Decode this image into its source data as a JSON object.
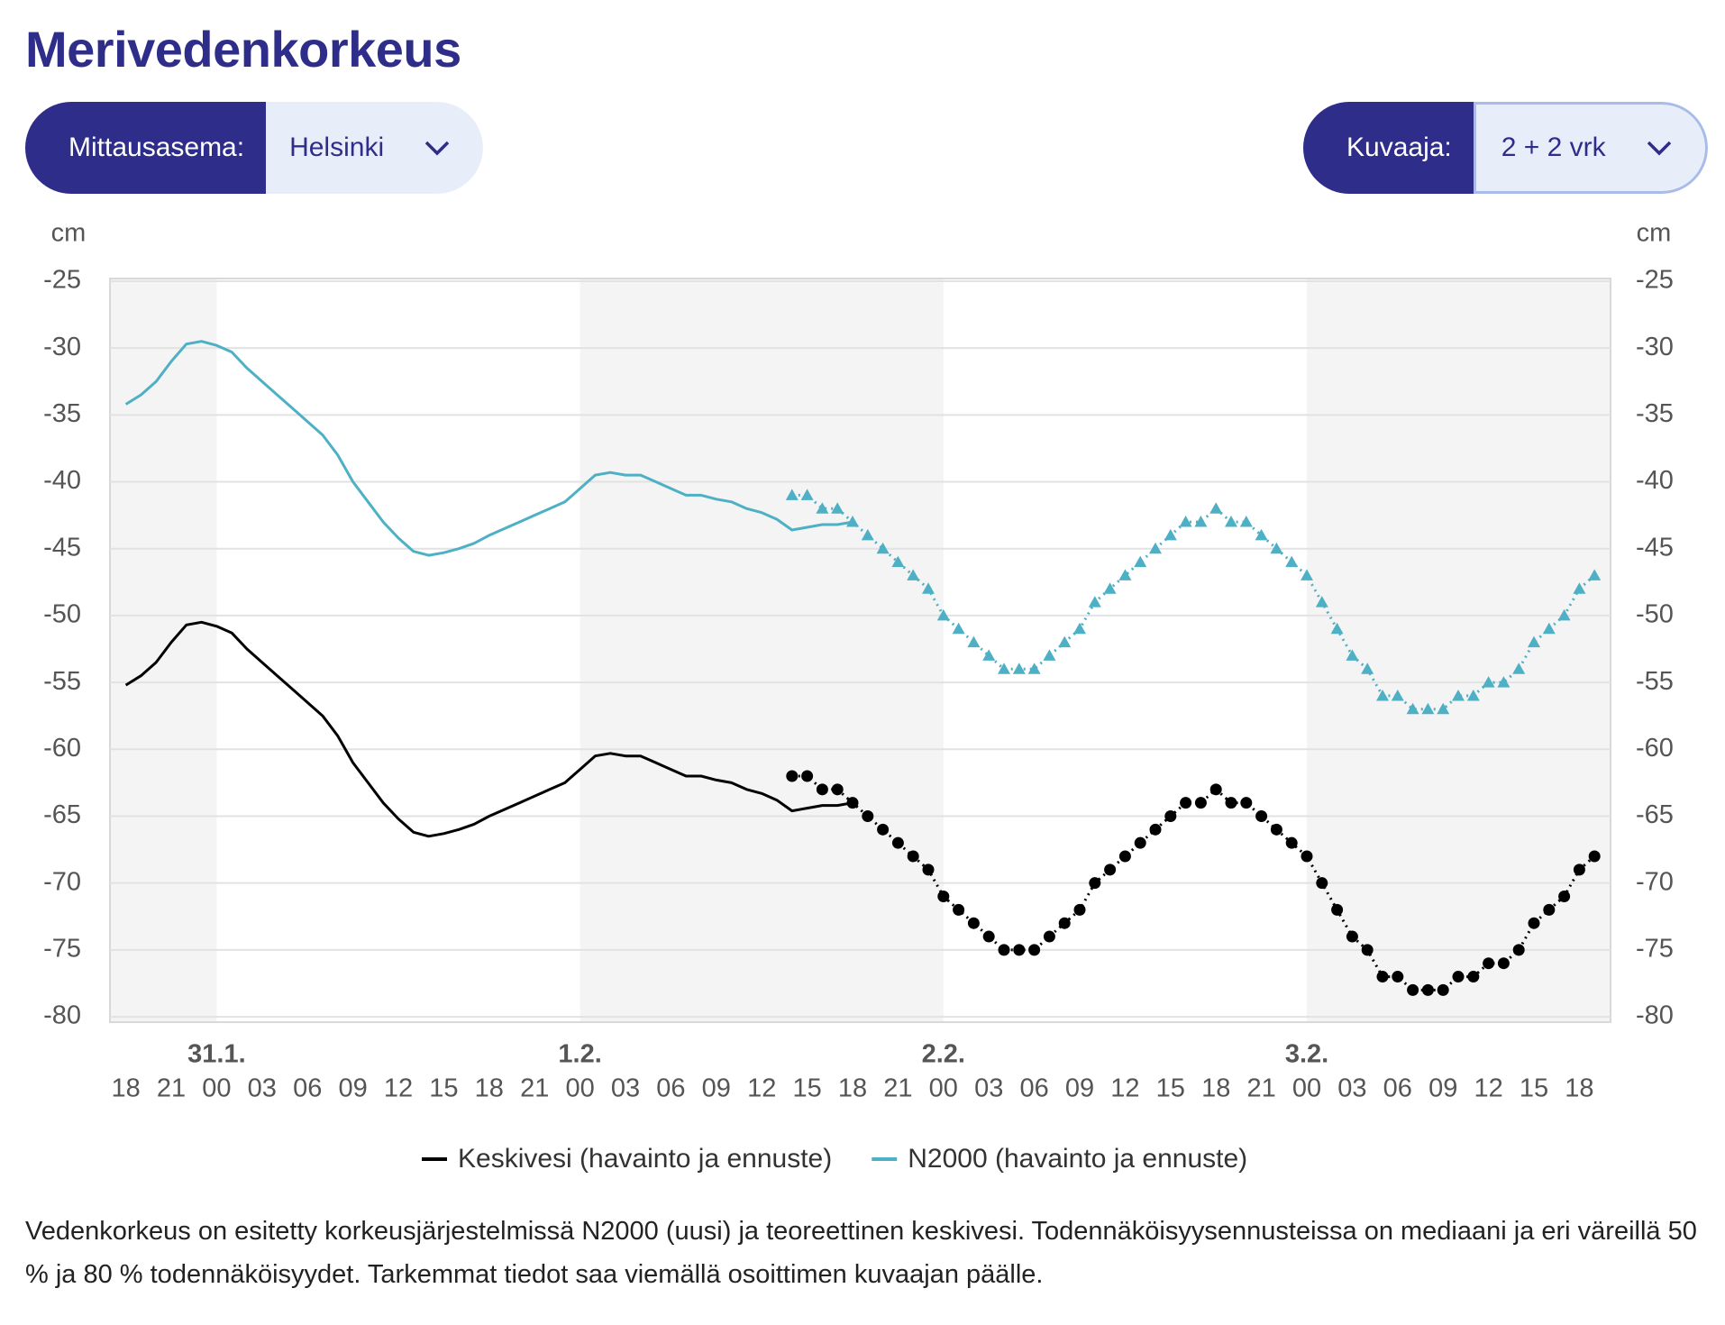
{
  "header": {
    "title": "Merivedenkorkeus",
    "controls": [
      {
        "label": "Mittausasema:",
        "value": "Helsinki"
      },
      {
        "label": "Kuvaaja:",
        "value": "2 + 2 vrk"
      }
    ]
  },
  "chart_data": {
    "type": "line",
    "y_label": "cm",
    "categories": [
      "18",
      null,
      null,
      "21",
      null,
      null,
      "00",
      null,
      null,
      "03",
      null,
      null,
      "06",
      null,
      null,
      "09",
      null,
      null,
      "12",
      null,
      null,
      "15",
      null,
      null,
      "18",
      null,
      null,
      "21",
      null,
      null,
      "00",
      null,
      null,
      "03",
      null,
      null,
      "06",
      null,
      null,
      "09",
      null,
      null,
      "12",
      null,
      null,
      "15",
      null,
      null,
      "18",
      null,
      null,
      "21",
      null,
      null,
      "00",
      null,
      null,
      "03",
      null,
      null,
      "06",
      null,
      null,
      "09",
      null,
      null,
      "12",
      null,
      null,
      "15",
      null,
      null,
      "18",
      null,
      null,
      "21",
      null,
      null,
      "00",
      null,
      null,
      "03",
      null,
      null,
      "06",
      null,
      null,
      "09",
      null,
      null,
      "12",
      null,
      null,
      "15",
      null,
      null,
      "18",
      null
    ],
    "dates": [
      null,
      null,
      null,
      null,
      null,
      null,
      "31.1.",
      null,
      null,
      null,
      null,
      null,
      null,
      null,
      null,
      null,
      null,
      null,
      null,
      null,
      null,
      null,
      null,
      null,
      null,
      null,
      null,
      null,
      null,
      null,
      "1.2.",
      null,
      null,
      null,
      null,
      null,
      null,
      null,
      null,
      null,
      null,
      null,
      null,
      null,
      null,
      null,
      null,
      null,
      null,
      null,
      null,
      null,
      null,
      null,
      "2.2.",
      null,
      null,
      null,
      null,
      null,
      null,
      null,
      null,
      null,
      null,
      null,
      null,
      null,
      null,
      null,
      null,
      null,
      null,
      null,
      null,
      null,
      null,
      null,
      "3.2.",
      null,
      null,
      null,
      null,
      null,
      null,
      null,
      null,
      null,
      null,
      null,
      null,
      null,
      null,
      null,
      null,
      null,
      null,
      null
    ],
    "ylim": [
      -80.4,
      -24.8
    ],
    "yticks": [
      -25,
      -30,
      -35,
      -40,
      -45,
      -50,
      -55,
      -60,
      -65,
      -70,
      -75,
      -80
    ],
    "grid": true,
    "series": [
      {
        "name": "Keskivesi (havainto ja ennuste)",
        "color": "#000000",
        "marker": "circle",
        "observation": [
          -55.2,
          -54.5,
          -53.5,
          -52,
          -50.7,
          -50.5,
          -50.8,
          -51.3,
          -52.5,
          -53.5,
          -54.5,
          -55.5,
          -56.5,
          -57.5,
          -59,
          -61,
          -62.5,
          -64,
          -65.2,
          -66.2,
          -66.5,
          -66.3,
          -66,
          -65.6,
          -65,
          -64.5,
          -64,
          -63.5,
          -63,
          -62.5,
          -61.5,
          -60.5,
          -60.3,
          -60.5,
          -60.5,
          -61,
          -61.5,
          -62,
          -62,
          -62.3,
          -62.5,
          -63,
          -63.3,
          -63.8,
          -64.6,
          -64.4,
          -64.2,
          -64.2,
          -64,
          null,
          null,
          null,
          null,
          null,
          null,
          null,
          null,
          null,
          null,
          null,
          null,
          null,
          null,
          null,
          null,
          null,
          null,
          null,
          null,
          null,
          null,
          null,
          null,
          null,
          null,
          null,
          null,
          null,
          null,
          null,
          null,
          null,
          null,
          null,
          null,
          null,
          null,
          null,
          null,
          null,
          null,
          null,
          null,
          null,
          null,
          null,
          null,
          null
        ],
        "forecast": [
          null,
          null,
          null,
          null,
          null,
          null,
          null,
          null,
          null,
          null,
          null,
          null,
          null,
          null,
          null,
          null,
          null,
          null,
          null,
          null,
          null,
          null,
          null,
          null,
          null,
          null,
          null,
          null,
          null,
          null,
          null,
          null,
          null,
          null,
          null,
          null,
          null,
          null,
          null,
          null,
          null,
          null,
          null,
          null,
          -62,
          -62,
          -63,
          -63,
          -64,
          -65,
          -66,
          -67,
          -68,
          -69,
          -71,
          -72,
          -73,
          -74,
          -75,
          -75,
          -75,
          -74,
          -73,
          -72,
          -70,
          -69,
          -68,
          -67,
          -66,
          -65,
          -64,
          -64,
          -63,
          -64,
          -64,
          -65,
          -66,
          -67,
          -68,
          -70,
          -72,
          -74,
          -75,
          -77,
          -77,
          -78,
          -78,
          -78,
          -77,
          -77,
          -76,
          -76,
          -75,
          -73,
          -72,
          -71,
          -69,
          -68
        ]
      },
      {
        "name": "N2000 (havainto ja ennuste)",
        "color": "#4eb0c4",
        "marker": "triangle",
        "observation": [
          -34.2,
          -33.5,
          -32.5,
          -31,
          -29.7,
          -29.5,
          -29.8,
          -30.3,
          -31.5,
          -32.5,
          -33.5,
          -34.5,
          -35.5,
          -36.5,
          -38,
          -40,
          -41.5,
          -43,
          -44.2,
          -45.2,
          -45.5,
          -45.3,
          -45,
          -44.6,
          -44,
          -43.5,
          -43,
          -42.5,
          -42,
          -41.5,
          -40.5,
          -39.5,
          -39.3,
          -39.5,
          -39.5,
          -40,
          -40.5,
          -41,
          -41,
          -41.3,
          -41.5,
          -42,
          -42.3,
          -42.8,
          -43.6,
          -43.4,
          -43.2,
          -43.2,
          -43,
          null,
          null,
          null,
          null,
          null,
          null,
          null,
          null,
          null,
          null,
          null,
          null,
          null,
          null,
          null,
          null,
          null,
          null,
          null,
          null,
          null,
          null,
          null,
          null,
          null,
          null,
          null,
          null,
          null,
          null,
          null,
          null,
          null,
          null,
          null,
          null,
          null,
          null,
          null,
          null,
          null,
          null,
          null,
          null,
          null,
          null,
          null,
          null,
          null
        ],
        "forecast": [
          null,
          null,
          null,
          null,
          null,
          null,
          null,
          null,
          null,
          null,
          null,
          null,
          null,
          null,
          null,
          null,
          null,
          null,
          null,
          null,
          null,
          null,
          null,
          null,
          null,
          null,
          null,
          null,
          null,
          null,
          null,
          null,
          null,
          null,
          null,
          null,
          null,
          null,
          null,
          null,
          null,
          null,
          null,
          null,
          -41,
          -41,
          -42,
          -42,
          -43,
          -44,
          -45,
          -46,
          -47,
          -48,
          -50,
          -51,
          -52,
          -53,
          -54,
          -54,
          -54,
          -53,
          -52,
          -51,
          -49,
          -48,
          -47,
          -46,
          -45,
          -44,
          -43,
          -43,
          -42,
          -43,
          -43,
          -44,
          -45,
          -46,
          -47,
          -49,
          -51,
          -53,
          -54,
          -56,
          -56,
          -57,
          -57,
          -57,
          -56,
          -56,
          -55,
          -55,
          -54,
          -52,
          -51,
          -50,
          -48,
          -47
        ]
      }
    ]
  },
  "description": "Vedenkorkeus on esitetty korkeusjärjestelmissä N2000 (uusi) ja teoreettinen keskivesi. Todennäköisyysennusteissa on mediaani ja eri väreillä 50 % ja 80 % todennäköisyydet. Tarkemmat tiedot saa viemällä osoittimen kuvaajan päälle."
}
